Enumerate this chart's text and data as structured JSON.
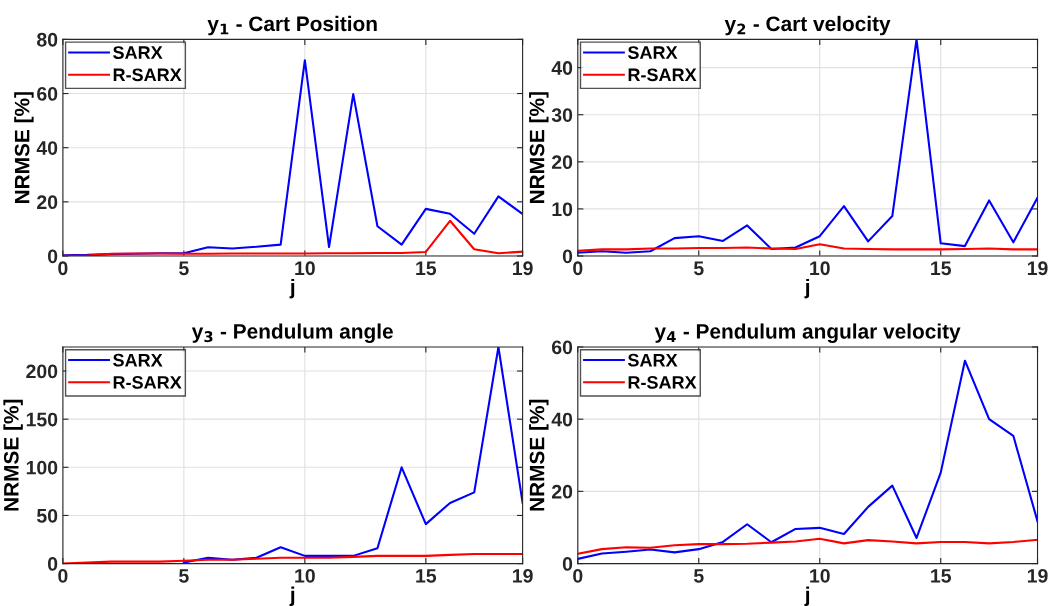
{
  "chart_data": [
    {
      "type": "line",
      "title": "y$_{1}$ - Cart Position",
      "xlabel": "j",
      "ylabel": "NRMSE [%]",
      "x": [
        0,
        1,
        2,
        3,
        4,
        5,
        6,
        7,
        8,
        9,
        10,
        11,
        12,
        13,
        14,
        15,
        16,
        17,
        18,
        19
      ],
      "xlim": [
        0,
        19
      ],
      "xticks": [
        0,
        5,
        10,
        15,
        19
      ],
      "ylim": [
        0,
        80
      ],
      "yticks": [
        0,
        20,
        40,
        60,
        80
      ],
      "grid": true,
      "legend": "top left",
      "series": [
        {
          "name": "SARX",
          "color": "#0000ff",
          "values": [
            0.3,
            0.4,
            0.7,
            0.8,
            1.0,
            1.0,
            3.2,
            2.8,
            3.4,
            4.2,
            72.3,
            3.3,
            59.8,
            11,
            4.2,
            17.4,
            15.6,
            8.2,
            22,
            15.5
          ]
        },
        {
          "name": "R-SARX",
          "color": "#ff0000",
          "values": [
            0.1,
            0.2,
            0.8,
            0.9,
            0.9,
            0.8,
            0.8,
            0.9,
            0.9,
            0.9,
            0.9,
            1.0,
            1.0,
            1.1,
            1.1,
            1.5,
            13,
            2.5,
            1.0,
            1.6
          ]
        }
      ]
    },
    {
      "type": "line",
      "title": "y$_{2}$ - Cart velocity",
      "xlabel": "j",
      "ylabel": "NRMSE [%]",
      "x": [
        0,
        1,
        2,
        3,
        4,
        5,
        6,
        7,
        8,
        9,
        10,
        11,
        12,
        13,
        14,
        15,
        16,
        17,
        18,
        19
      ],
      "xlim": [
        0,
        19
      ],
      "xticks": [
        0,
        5,
        10,
        15,
        19
      ],
      "ylim": [
        0,
        46
      ],
      "yticks": [
        0,
        10,
        20,
        30,
        40
      ],
      "grid": true,
      "legend": "top left",
      "series": [
        {
          "name": "SARX",
          "color": "#0000ff",
          "values": [
            0.7,
            1.0,
            0.7,
            1.0,
            3.8,
            4.2,
            3.2,
            6.5,
            1.5,
            1.8,
            4.2,
            10.6,
            3.1,
            8.5,
            46,
            2.7,
            2.1,
            11.8,
            2.9,
            12.4
          ]
        },
        {
          "name": "R-SARX",
          "color": "#ff0000",
          "values": [
            1.1,
            1.4,
            1.4,
            1.6,
            1.6,
            1.7,
            1.7,
            1.8,
            1.6,
            1.5,
            2.5,
            1.6,
            1.5,
            1.4,
            1.4,
            1.4,
            1.5,
            1.6,
            1.4,
            1.4
          ]
        }
      ]
    },
    {
      "type": "line",
      "title": "y$_{3}$ - Pendulum angle",
      "xlabel": "j",
      "ylabel": "NRMSE [%]",
      "x": [
        0,
        1,
        2,
        3,
        4,
        5,
        6,
        7,
        8,
        9,
        10,
        11,
        12,
        13,
        14,
        15,
        16,
        17,
        18,
        19
      ],
      "xlim": [
        0,
        19
      ],
      "xticks": [
        0,
        5,
        10,
        15,
        19
      ],
      "ylim": [
        0,
        225
      ],
      "yticks": [
        0,
        50,
        100,
        150,
        200
      ],
      "grid": true,
      "legend": "top left",
      "series": [
        {
          "name": "SARX",
          "color": "#0000ff",
          "values": [
            null,
            null,
            null,
            null,
            null,
            1,
            6,
            4,
            6,
            17,
            8,
            8,
            8,
            16,
            100,
            41,
            63,
            74,
            225,
            63
          ]
        },
        {
          "name": "R-SARX",
          "color": "#ff0000",
          "values": [
            0,
            1,
            2,
            2,
            2,
            3,
            4,
            4,
            5,
            6,
            6,
            6,
            7,
            8,
            8,
            8,
            9,
            10,
            10,
            10
          ]
        }
      ]
    },
    {
      "type": "line",
      "title": "y$_{4}$ - Pendulum angular velocity",
      "xlabel": "j",
      "ylabel": "NRMSE [%]",
      "x": [
        0,
        1,
        2,
        3,
        4,
        5,
        6,
        7,
        8,
        9,
        10,
        11,
        12,
        13,
        14,
        15,
        16,
        17,
        18,
        19
      ],
      "xlim": [
        0,
        19
      ],
      "xticks": [
        0,
        5,
        10,
        15,
        19
      ],
      "ylim": [
        0,
        60
      ],
      "yticks": [
        0,
        20,
        40,
        60
      ],
      "grid": true,
      "legend": "top left",
      "series": [
        {
          "name": "SARX",
          "color": "#0000ff",
          "values": [
            1.3,
            2.8,
            3.3,
            3.9,
            3.1,
            4,
            6,
            10.9,
            5.9,
            9.6,
            9.9,
            8.2,
            15.7,
            21.6,
            7.1,
            25.2,
            56.2,
            40,
            35.4,
            11.7
          ]
        },
        {
          "name": "R-SARX",
          "color": "#ff0000",
          "values": [
            2.7,
            4,
            4.5,
            4.4,
            5.1,
            5.4,
            5.4,
            5.5,
            5.8,
            6.1,
            6.9,
            5.6,
            6.5,
            6.1,
            5.6,
            6,
            6,
            5.6,
            6,
            6.6
          ]
        }
      ]
    }
  ]
}
